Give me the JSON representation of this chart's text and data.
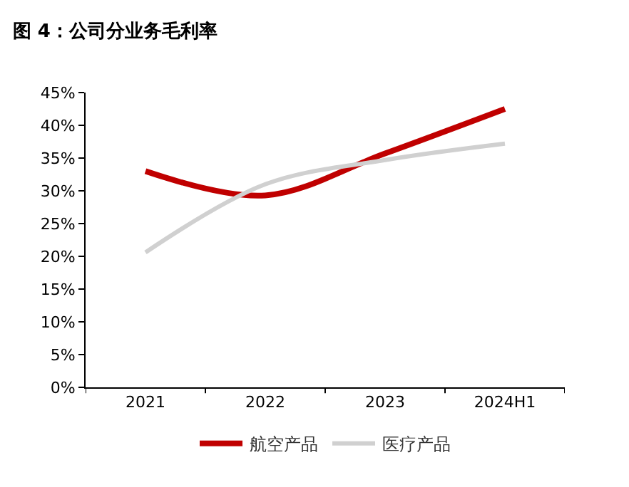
{
  "chart_data": {
    "type": "line",
    "title": "图 4：公司分业务毛利率",
    "categories": [
      "2021",
      "2022",
      "2023",
      "2024H1"
    ],
    "series": [
      {
        "name": "航空产品",
        "color": "#c00000",
        "values": [
          33.0,
          29.3,
          35.7,
          42.5
        ]
      },
      {
        "name": "医疗产品",
        "color": "#d0d0d0",
        "values": [
          20.6,
          31.0,
          34.7,
          37.2
        ]
      }
    ],
    "ylim": [
      0,
      45
    ],
    "yticks": [
      {
        "value": 0,
        "label": "0%"
      },
      {
        "value": 5,
        "label": "5%"
      },
      {
        "value": 10,
        "label": "10%"
      },
      {
        "value": 15,
        "label": "15%"
      },
      {
        "value": 20,
        "label": "20%"
      },
      {
        "value": 25,
        "label": "25%"
      },
      {
        "value": 30,
        "label": "30%"
      },
      {
        "value": 35,
        "label": "35%"
      },
      {
        "value": 40,
        "label": "40%"
      },
      {
        "value": 45,
        "label": "45%"
      }
    ],
    "legend": "bottom",
    "marker": "none",
    "line_style": "solid"
  }
}
